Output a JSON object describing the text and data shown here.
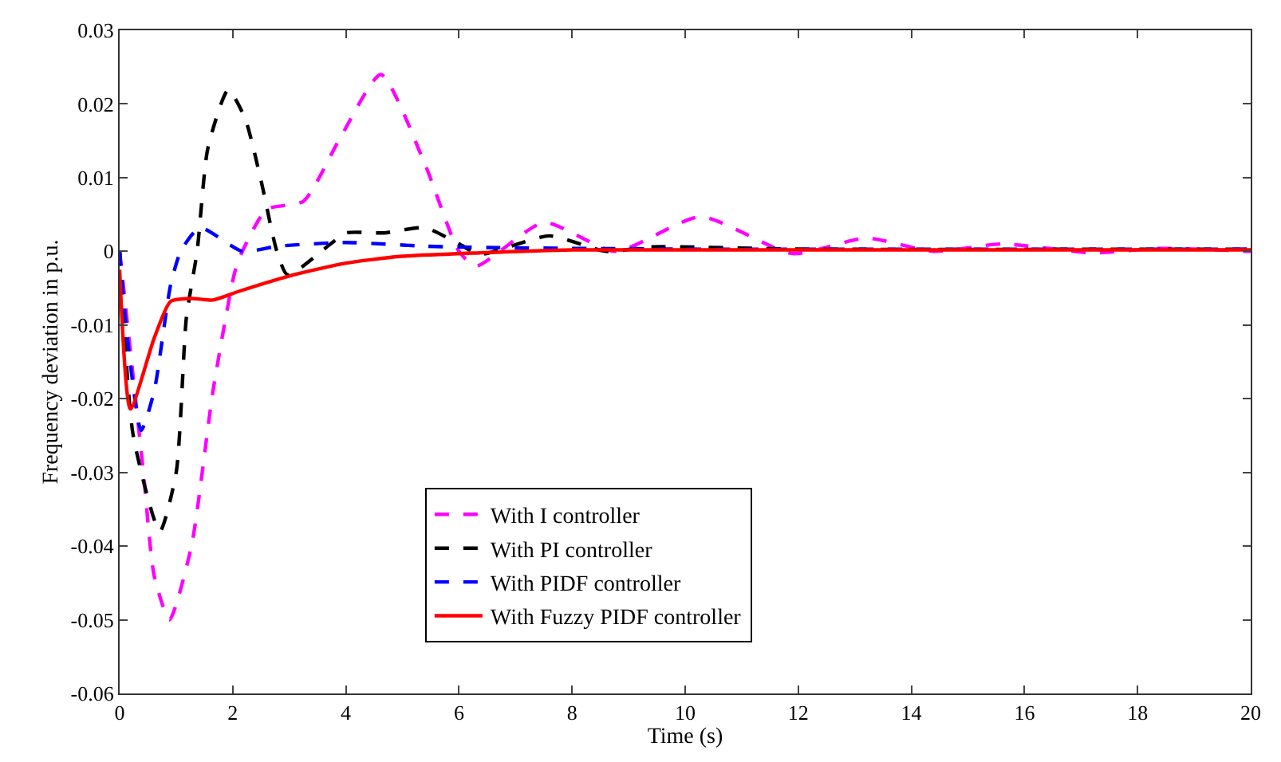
{
  "chart_data": {
    "type": "line",
    "xlabel": "Time (s)",
    "ylabel": "Frequency deviation in p.u.",
    "xlim": [
      0,
      20
    ],
    "ylim": [
      -0.06,
      0.03
    ],
    "xticks": [
      0,
      2,
      4,
      6,
      8,
      10,
      12,
      14,
      16,
      18,
      20
    ],
    "yticks": [
      {
        "value": -0.06,
        "label": "-0.06"
      },
      {
        "value": -0.05,
        "label": "-0.05"
      },
      {
        "value": -0.04,
        "label": "-0.04"
      },
      {
        "value": -0.03,
        "label": "-0.03"
      },
      {
        "value": -0.02,
        "label": "-0.02"
      },
      {
        "value": -0.01,
        "label": "-0.01"
      },
      0,
      {
        "value": 0.01,
        "label": "0.01"
      },
      {
        "value": 0.02,
        "label": "0.02"
      },
      {
        "value": 0.03,
        "label": "0.03"
      }
    ],
    "legend": "bottom",
    "marker": "none",
    "series": [
      {
        "name": "With I controller",
        "color": "#ff00ff",
        "line_style": "dashed",
        "x": [
          0,
          0.42,
          0.61,
          0.88,
          1.27,
          1.65,
          2.03,
          2.17,
          2.6,
          3.25,
          3.9,
          4.62,
          5.4,
          6.0,
          6.3,
          7.5,
          8.77,
          10.27,
          11.9,
          13.2,
          14.4,
          15.6,
          17.2,
          18.4,
          20
        ],
        "values": [
          0,
          -0.03,
          -0.044,
          -0.05,
          -0.04,
          -0.019,
          -0.003,
          0,
          0.0057,
          0.0068,
          0.0154,
          0.024,
          0.0118,
          0,
          -0.002,
          0.0039,
          0,
          0.0047,
          -0.0003,
          0.0018,
          0,
          0.001,
          -0.0002,
          0.0004,
          0
        ]
      },
      {
        "name": "With PI controller",
        "color": "#000000",
        "line_style": "dashed",
        "x": [
          0,
          0.24,
          0.71,
          1.0,
          1.18,
          1.37,
          1.56,
          1.92,
          2.22,
          2.5,
          2.78,
          2.97,
          3.73,
          4.0,
          4.67,
          5.4,
          6.0,
          6.37,
          7.6,
          8.6,
          9.4,
          12,
          20
        ],
        "values": [
          0,
          -0.025,
          -0.038,
          -0.03,
          -0.009,
          0,
          0.014,
          0.0219,
          0.018,
          0.0096,
          0,
          -0.0032,
          0.001,
          0.0025,
          0.0025,
          0.0032,
          0.001,
          -0.0004,
          0.0021,
          0,
          0.0006,
          0.0003,
          0.0003
        ]
      },
      {
        "name": "With PIDF controller",
        "color": "#0000ff",
        "line_style": "dashed",
        "x": [
          0,
          0.14,
          0.38,
          0.61,
          0.9,
          1.08,
          1.42,
          2.17,
          2.8,
          4.0,
          5.4,
          6.7,
          10,
          20
        ],
        "values": [
          0,
          -0.012,
          -0.0243,
          -0.019,
          -0.0046,
          0,
          0.0032,
          0,
          0.0007,
          0.0012,
          0.0007,
          0.0005,
          0.0003,
          0.0003
        ]
      },
      {
        "name": "With Fuzzy PIDF controller",
        "color": "#ff0000",
        "line_style": "solid",
        "x": [
          0,
          0.19,
          0.61,
          0.9,
          1.27,
          1.65,
          2.12,
          3.07,
          4.0,
          4.95,
          6.37,
          8,
          20
        ],
        "values": [
          -0.0025,
          -0.0214,
          -0.0118,
          -0.0068,
          -0.0064,
          -0.0066,
          -0.0054,
          -0.0032,
          -0.0016,
          -0.0007,
          -0.0002,
          0.0002,
          0.0002
        ]
      }
    ]
  }
}
